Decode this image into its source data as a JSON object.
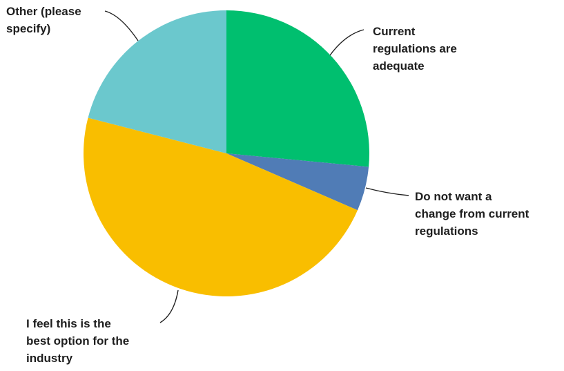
{
  "chart_data": {
    "type": "pie",
    "slices": [
      {
        "label": "Current regulations are adequate",
        "value": 26.5,
        "color": "#00bf6f"
      },
      {
        "label": "Do not want a change from current regulations",
        "value": 5.0,
        "color": "#507cb6"
      },
      {
        "label": "I feel this is the best option for the industry",
        "value": 47.5,
        "color": "#f9be00"
      },
      {
        "label": "Other (please specify)",
        "value": 21.0,
        "color": "#6bc8cd"
      }
    ],
    "start_angle_deg": 0,
    "direction": "clockwise",
    "legend": "none",
    "labels": "outside with leader lines"
  },
  "label_lines": [
    [
      "Current",
      "regulations are",
      "adequate"
    ],
    [
      "Do not want a",
      "change from current",
      "regulations"
    ],
    [
      "I feel this is the",
      "best option for the",
      "industry"
    ],
    [
      "Other (please",
      "specify)"
    ]
  ]
}
